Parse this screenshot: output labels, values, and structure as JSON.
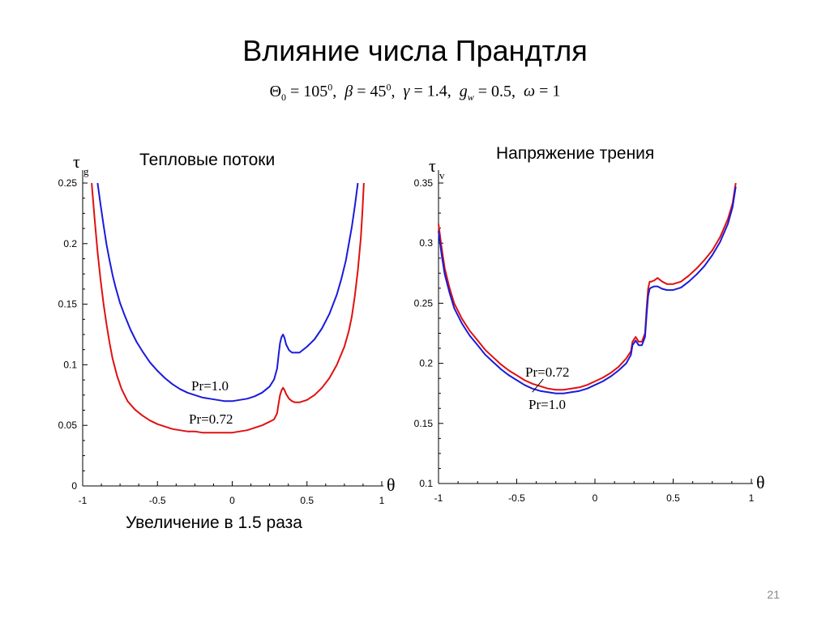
{
  "slide": {
    "title": "Влияние числа Прандтля",
    "params": {
      "theta0": "Θ",
      "theta0_sub": "0",
      "theta0_val": " = 105",
      "theta0_sup": "0",
      "beta": "β",
      "beta_val": " = 45",
      "beta_sup": "0",
      "gamma": "γ",
      "gamma_val": " = 1.4,",
      "g": "g",
      "g_sub": "w",
      "g_val": " = 0.5,",
      "omega": "ω",
      "omega_val": " = 1"
    },
    "page_number": "21"
  },
  "chart_data": [
    {
      "type": "line",
      "caption_top": "Тепловые потоки",
      "caption_bottom": "Увеличение в 1.5 раза",
      "ylabel": "τ",
      "ylabel_sub": "g",
      "xlabel": "θ",
      "xlim": [
        -1,
        1
      ],
      "ylim": [
        0,
        0.25
      ],
      "x_ticks": [
        "-1",
        "-0.5",
        "0",
        "0.5",
        "1"
      ],
      "y_ticks": [
        "0",
        "0.05",
        "0.1",
        "0.15",
        "0.2",
        "0.25"
      ],
      "series": [
        {
          "name": "Pr=1.0",
          "color": "#1a1adb",
          "x": [
            -0.9,
            -0.88,
            -0.86,
            -0.84,
            -0.82,
            -0.8,
            -0.78,
            -0.75,
            -0.72,
            -0.68,
            -0.64,
            -0.6,
            -0.55,
            -0.5,
            -0.45,
            -0.4,
            -0.35,
            -0.3,
            -0.25,
            -0.2,
            -0.15,
            -0.1,
            -0.05,
            0,
            0.05,
            0.1,
            0.15,
            0.2,
            0.25,
            0.28,
            0.3,
            0.31,
            0.32,
            0.33,
            0.34,
            0.35,
            0.36,
            0.38,
            0.4,
            0.42,
            0.45,
            0.5,
            0.55,
            0.6,
            0.65,
            0.7,
            0.73,
            0.76,
            0.78,
            0.8,
            0.82,
            0.84
          ],
          "y": [
            0.25,
            0.232,
            0.215,
            0.199,
            0.186,
            0.174,
            0.164,
            0.151,
            0.141,
            0.129,
            0.119,
            0.111,
            0.102,
            0.095,
            0.089,
            0.084,
            0.08,
            0.077,
            0.075,
            0.073,
            0.072,
            0.071,
            0.07,
            0.07,
            0.071,
            0.072,
            0.074,
            0.077,
            0.082,
            0.088,
            0.097,
            0.108,
            0.118,
            0.123,
            0.125,
            0.122,
            0.117,
            0.112,
            0.11,
            0.11,
            0.11,
            0.115,
            0.121,
            0.13,
            0.142,
            0.158,
            0.171,
            0.186,
            0.2,
            0.214,
            0.231,
            0.25
          ]
        },
        {
          "name": "Pr=0.72",
          "color": "#e01010",
          "x": [
            -0.94,
            -0.92,
            -0.9,
            -0.88,
            -0.86,
            -0.84,
            -0.82,
            -0.8,
            -0.77,
            -0.74,
            -0.7,
            -0.65,
            -0.6,
            -0.55,
            -0.5,
            -0.45,
            -0.4,
            -0.35,
            -0.3,
            -0.25,
            -0.2,
            -0.15,
            -0.1,
            -0.05,
            0,
            0.05,
            0.1,
            0.15,
            0.2,
            0.25,
            0.28,
            0.3,
            0.31,
            0.32,
            0.33,
            0.34,
            0.35,
            0.36,
            0.38,
            0.4,
            0.42,
            0.45,
            0.5,
            0.55,
            0.6,
            0.65,
            0.7,
            0.75,
            0.78,
            0.8,
            0.82,
            0.84,
            0.86,
            0.87,
            0.88
          ],
          "y": [
            0.25,
            0.22,
            0.193,
            0.17,
            0.15,
            0.133,
            0.118,
            0.105,
            0.091,
            0.08,
            0.07,
            0.063,
            0.058,
            0.054,
            0.051,
            0.049,
            0.047,
            0.046,
            0.045,
            0.045,
            0.044,
            0.044,
            0.044,
            0.044,
            0.044,
            0.045,
            0.046,
            0.048,
            0.05,
            0.053,
            0.055,
            0.06,
            0.068,
            0.075,
            0.079,
            0.081,
            0.079,
            0.076,
            0.072,
            0.07,
            0.069,
            0.069,
            0.071,
            0.075,
            0.081,
            0.089,
            0.1,
            0.115,
            0.128,
            0.14,
            0.157,
            0.178,
            0.205,
            0.225,
            0.25
          ]
        }
      ]
    },
    {
      "type": "line",
      "caption_top": "Напряжение трения",
      "ylabel": "τ",
      "ylabel_sub": "v",
      "xlabel": "θ",
      "xlim": [
        -1,
        1
      ],
      "ylim": [
        0.1,
        0.35
      ],
      "x_ticks": [
        "-1",
        "-0.5",
        "0",
        "0.5",
        "1"
      ],
      "y_ticks": [
        "0.1",
        "0.15",
        "0.2",
        "0.25",
        "0.3",
        "0.35"
      ],
      "series": [
        {
          "name": "Pr=0.72",
          "color": "#e01010",
          "x": [
            -1,
            -0.98,
            -0.96,
            -0.93,
            -0.9,
            -0.85,
            -0.8,
            -0.75,
            -0.7,
            -0.65,
            -0.6,
            -0.55,
            -0.5,
            -0.45,
            -0.4,
            -0.35,
            -0.3,
            -0.25,
            -0.2,
            -0.15,
            -0.1,
            -0.05,
            0,
            0.05,
            0.1,
            0.15,
            0.2,
            0.23,
            0.24,
            0.26,
            0.28,
            0.3,
            0.32,
            0.33,
            0.34,
            0.35,
            0.36,
            0.38,
            0.4,
            0.43,
            0.46,
            0.5,
            0.55,
            0.6,
            0.65,
            0.7,
            0.75,
            0.8,
            0.85,
            0.88,
            0.9
          ],
          "y": [
            0.316,
            0.296,
            0.279,
            0.263,
            0.25,
            0.237,
            0.227,
            0.219,
            0.211,
            0.205,
            0.199,
            0.194,
            0.19,
            0.186,
            0.183,
            0.181,
            0.179,
            0.178,
            0.178,
            0.179,
            0.18,
            0.182,
            0.185,
            0.188,
            0.192,
            0.197,
            0.204,
            0.21,
            0.218,
            0.222,
            0.218,
            0.218,
            0.225,
            0.245,
            0.262,
            0.268,
            0.268,
            0.269,
            0.271,
            0.268,
            0.266,
            0.266,
            0.268,
            0.273,
            0.279,
            0.286,
            0.294,
            0.305,
            0.32,
            0.333,
            0.35
          ]
        },
        {
          "name": "Pr=1.0",
          "color": "#1a1adb",
          "x": [
            -1,
            -0.98,
            -0.96,
            -0.93,
            -0.9,
            -0.85,
            -0.8,
            -0.75,
            -0.7,
            -0.65,
            -0.6,
            -0.55,
            -0.5,
            -0.45,
            -0.4,
            -0.35,
            -0.3,
            -0.25,
            -0.2,
            -0.15,
            -0.1,
            -0.05,
            0,
            0.05,
            0.1,
            0.15,
            0.2,
            0.23,
            0.24,
            0.26,
            0.28,
            0.3,
            0.32,
            0.33,
            0.34,
            0.35,
            0.36,
            0.38,
            0.4,
            0.43,
            0.46,
            0.5,
            0.55,
            0.6,
            0.65,
            0.7,
            0.75,
            0.8,
            0.85,
            0.88,
            0.9
          ],
          "y": [
            0.31,
            0.29,
            0.274,
            0.259,
            0.246,
            0.233,
            0.223,
            0.215,
            0.207,
            0.201,
            0.195,
            0.19,
            0.186,
            0.182,
            0.179,
            0.177,
            0.176,
            0.175,
            0.175,
            0.176,
            0.177,
            0.179,
            0.182,
            0.185,
            0.189,
            0.194,
            0.2,
            0.207,
            0.215,
            0.219,
            0.215,
            0.215,
            0.222,
            0.24,
            0.256,
            0.262,
            0.263,
            0.264,
            0.264,
            0.262,
            0.261,
            0.261,
            0.263,
            0.268,
            0.274,
            0.281,
            0.29,
            0.301,
            0.316,
            0.33,
            0.347
          ]
        }
      ]
    }
  ]
}
